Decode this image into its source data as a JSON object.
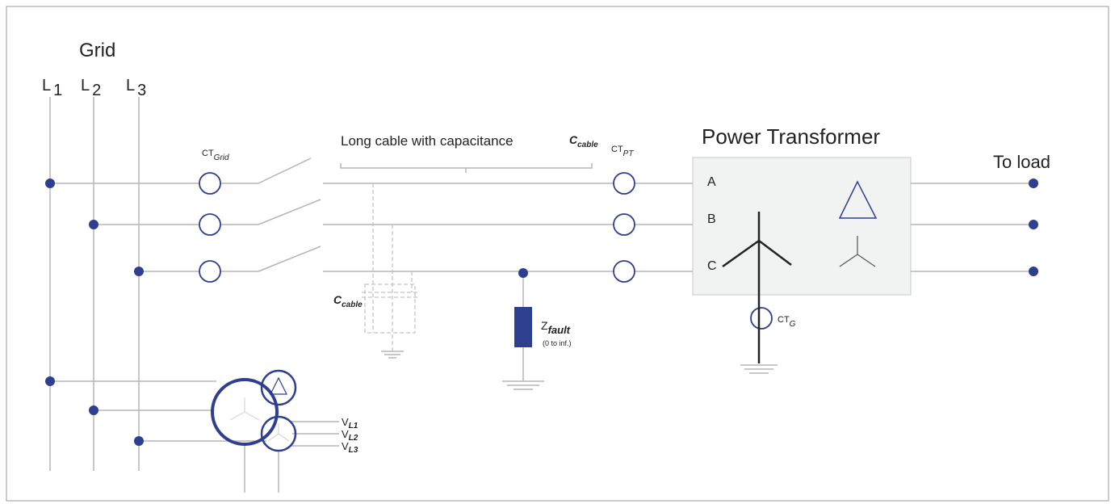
{
  "title": "Grid",
  "lines": [
    {
      "main": "L",
      "sub": "1"
    },
    {
      "main": "L",
      "sub": "2"
    },
    {
      "main": "L",
      "sub": "3"
    }
  ],
  "current_transformers": [
    {
      "main": "CT",
      "sub": "Grid"
    },
    {
      "main": "CT",
      "sub": "PT"
    },
    {
      "main": "CT",
      "sub": "G"
    }
  ],
  "cable": {
    "label": "Long cable with capacitance",
    "capacitance": {
      "main": "C",
      "sub": "cable"
    },
    "capacitor": {
      "main": "C",
      "sub": "cable"
    }
  },
  "transformer": {
    "title": "Power Transformer",
    "phases": [
      "A",
      "B",
      "C"
    ]
  },
  "load": "To load",
  "fault": {
    "main": "Z",
    "sub": "fault",
    "range": "(0 to inf.)"
  },
  "voltages": [
    {
      "main": "V",
      "sub": "L1"
    },
    {
      "main": "V",
      "sub": "L2"
    },
    {
      "main": "V",
      "sub": "L3"
    }
  ]
}
